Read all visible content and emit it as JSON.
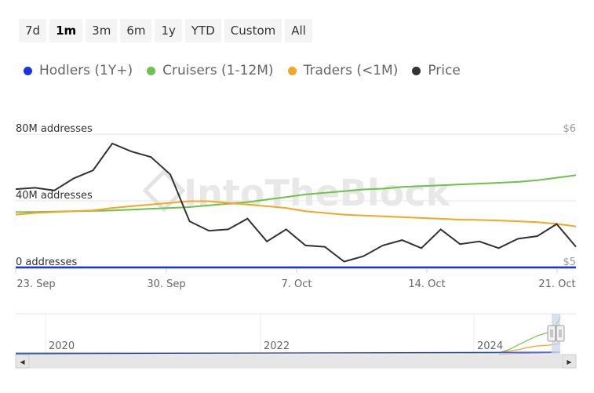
{
  "range_buttons": [
    {
      "label": "7d",
      "active": false
    },
    {
      "label": "1m",
      "active": true
    },
    {
      "label": "3m",
      "active": false
    },
    {
      "label": "6m",
      "active": false
    },
    {
      "label": "1y",
      "active": false
    },
    {
      "label": "YTD",
      "active": false
    },
    {
      "label": "Custom",
      "active": false
    },
    {
      "label": "All",
      "active": false
    }
  ],
  "watermark": "IntoTheBlock",
  "colors": {
    "hodlers": "#1a33e6",
    "cruisers": "#6cc24a",
    "traders": "#f5a623",
    "price": "#333333"
  },
  "chart_data": {
    "type": "line",
    "title": "",
    "legend_placement": "top-left",
    "grid": true,
    "x_ticks": [
      "23. Sep",
      "30. Sep",
      "7. Oct",
      "14. Oct",
      "21. Oct"
    ],
    "x_range": [
      "2024-09-23",
      "2024-10-22"
    ],
    "y_left": {
      "ticks": [
        "0 addresses",
        "40M addresses",
        "80M addresses"
      ],
      "values": [
        0,
        40,
        80
      ],
      "unit": "M addresses",
      "range": [
        0,
        80
      ]
    },
    "y_right": {
      "ticks": [
        "$5",
        "$6"
      ],
      "values": [
        5,
        6
      ],
      "range": [
        5,
        6
      ]
    },
    "series": [
      {
        "name": "Hodlers (1Y+)",
        "key": "hodlers",
        "axis": "left",
        "values": [
          0.5,
          0.5,
          0.5,
          0.5,
          0.5,
          0.5,
          0.5,
          0.5,
          0.5,
          0.5,
          0.5,
          0.5,
          0.5,
          0.5,
          0.5,
          0.5,
          0.5,
          0.5,
          0.5,
          0.5,
          0.5,
          0.5,
          0.5,
          0.5,
          0.5,
          0.5,
          0.5,
          0.5,
          0.5,
          0.5
        ]
      },
      {
        "name": "Cruisers (1-12M)",
        "key": "cruisers",
        "axis": "left",
        "values": [
          33.5,
          33.6,
          33.8,
          34.0,
          34.2,
          34.5,
          35.0,
          35.5,
          36.0,
          36.5,
          37.5,
          38.5,
          39.5,
          41,
          42.5,
          44,
          45,
          46,
          47,
          47.5,
          48.5,
          49,
          49.5,
          50,
          50.5,
          51,
          51.5,
          52.5,
          54,
          55.5
        ]
      },
      {
        "name": "Traders (<1M)",
        "key": "traders",
        "axis": "left",
        "values": [
          32,
          33,
          33.5,
          34,
          34.5,
          36,
          37,
          38,
          39,
          40,
          40,
          39,
          38,
          37,
          36,
          34,
          33,
          32,
          31.5,
          31,
          30.5,
          30,
          29.5,
          29,
          28.8,
          28.5,
          28,
          27.5,
          26.5,
          25
        ]
      },
      {
        "name": "Price",
        "key": "price",
        "axis": "right",
        "values": [
          5.59,
          5.6,
          5.58,
          5.67,
          5.73,
          5.93,
          5.87,
          5.83,
          5.7,
          5.35,
          5.28,
          5.29,
          5.37,
          5.2,
          5.29,
          5.17,
          5.16,
          5.05,
          5.09,
          5.17,
          5.21,
          5.15,
          5.29,
          5.18,
          5.2,
          5.15,
          5.22,
          5.24,
          5.33,
          5.16
        ]
      }
    ]
  },
  "navigator": {
    "labels": [
      "2020",
      "2022",
      "2024"
    ],
    "scroll_left_glyph": "◀",
    "scroll_right_glyph": "▶"
  }
}
